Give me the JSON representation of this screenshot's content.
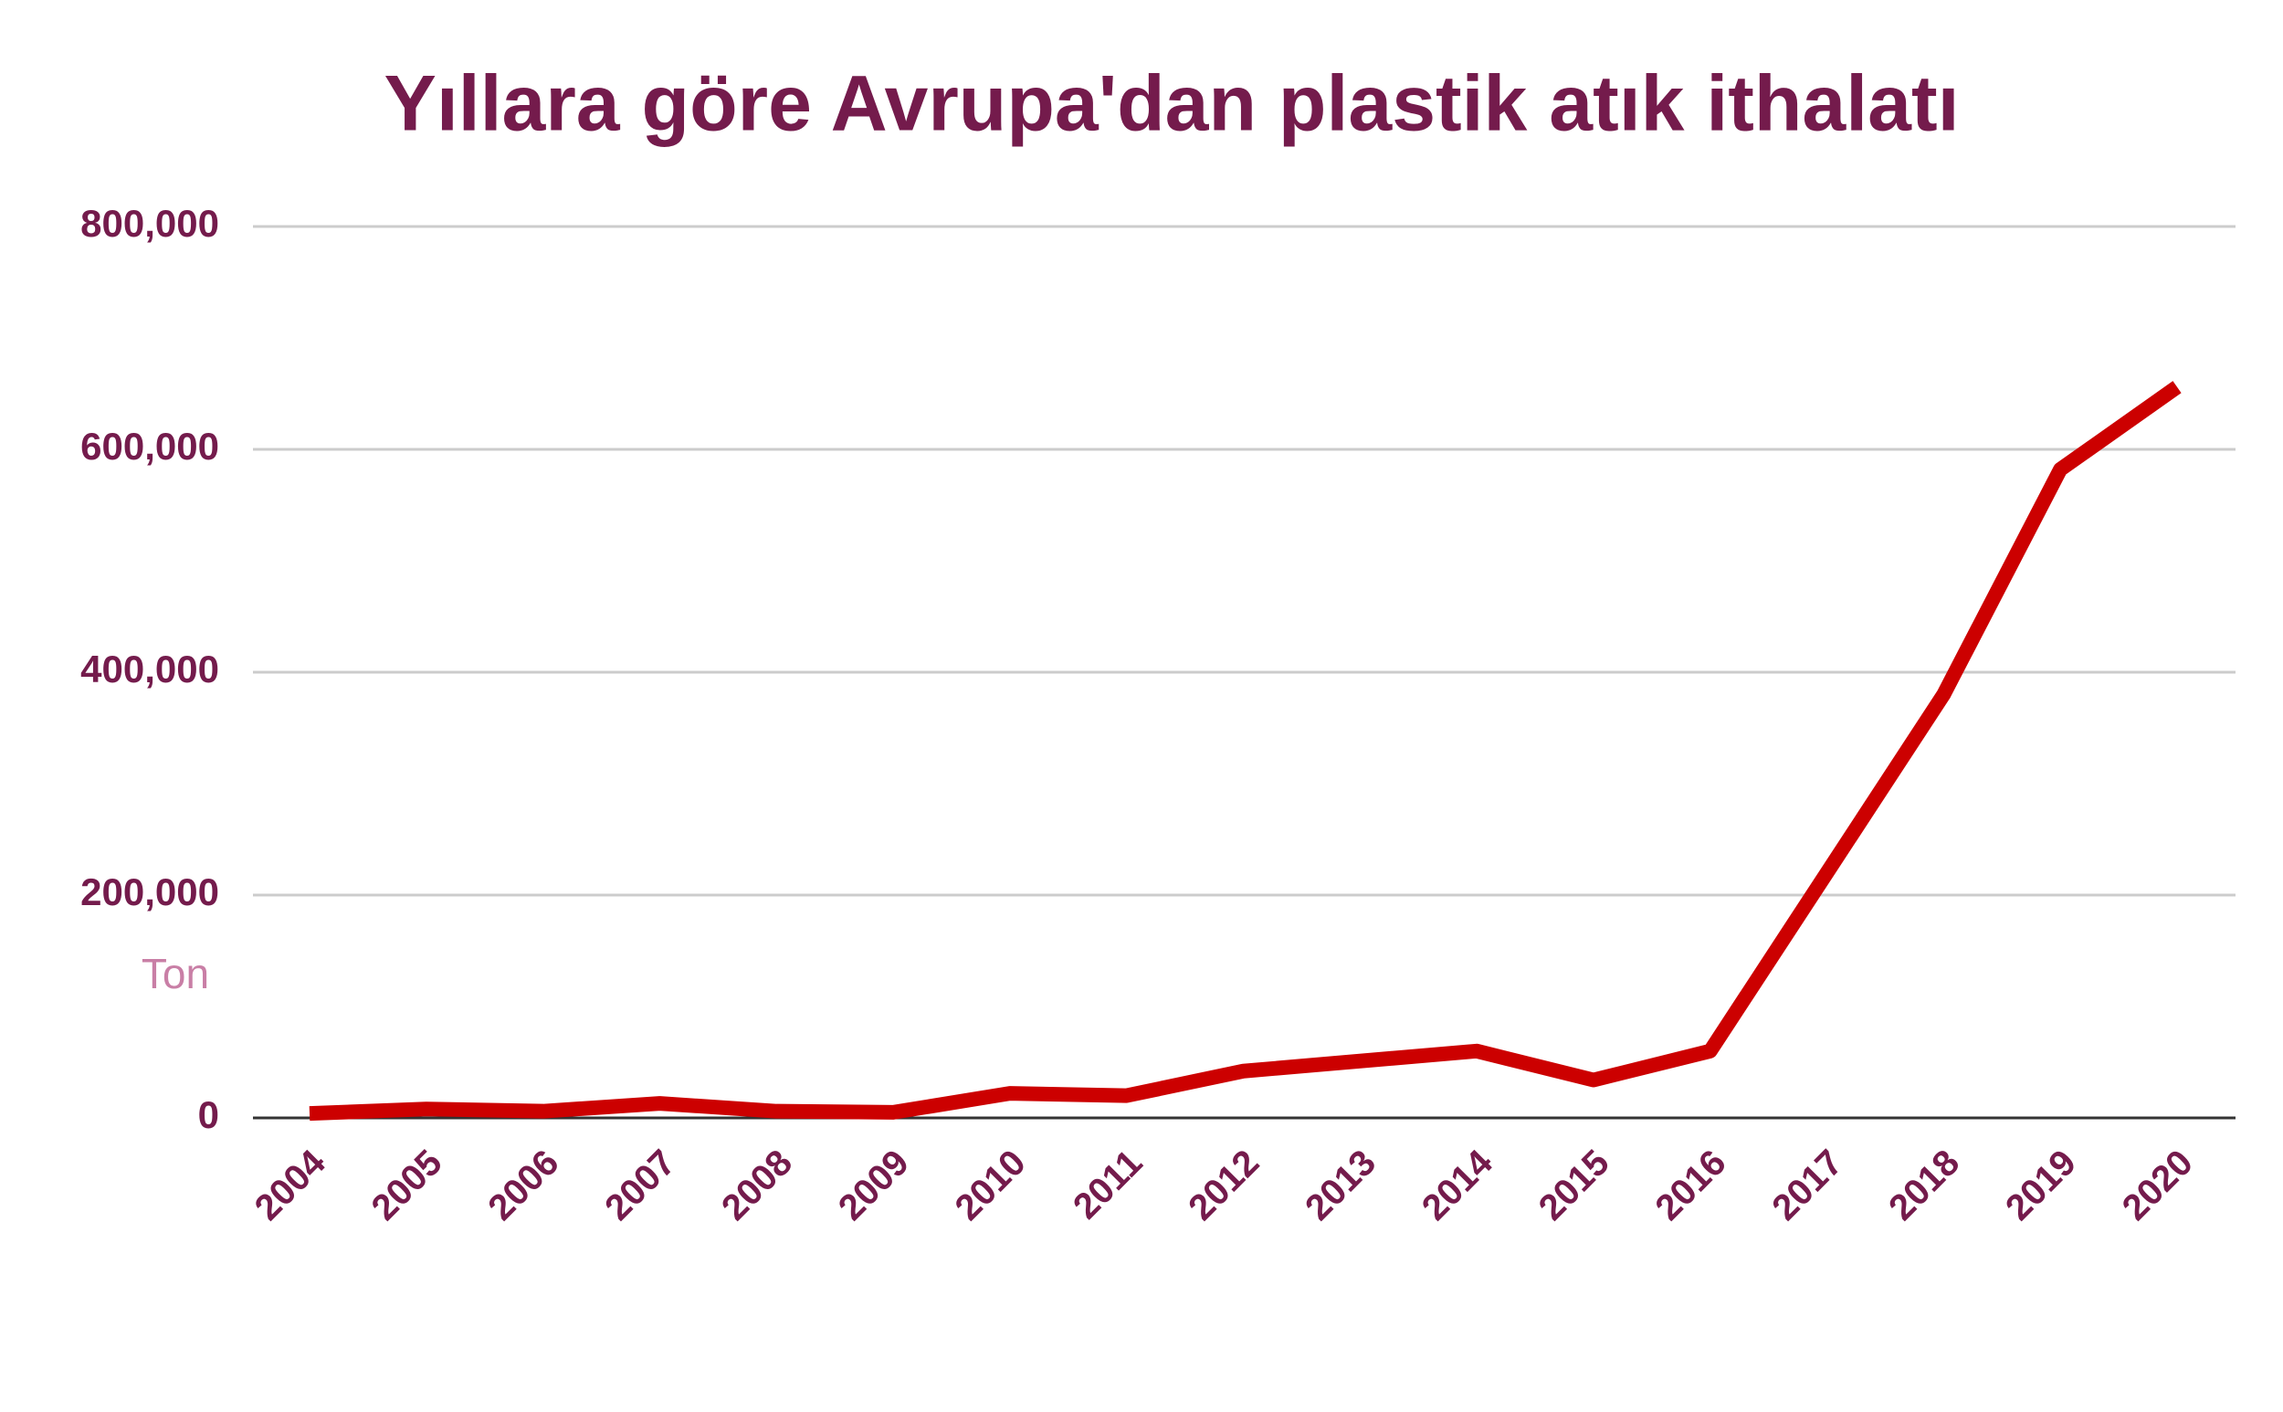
{
  "chart_data": {
    "type": "line",
    "title": "Yıllara göre Avrupa'dan plastik atık ithalatı",
    "ylabel": "Ton",
    "x": [
      "2004",
      "2005",
      "2006",
      "2007",
      "2008",
      "2009",
      "2010",
      "2011",
      "2012",
      "2013",
      "2014",
      "2015",
      "2016",
      "2017",
      "2018",
      "2019",
      "2020"
    ],
    "series": [
      {
        "name": "Ton",
        "color": "#cc0000",
        "values": [
          4000,
          8000,
          6000,
          13000,
          6000,
          5000,
          22000,
          20000,
          42000,
          51000,
          60000,
          34000,
          60000,
          220000,
          380000,
          582000,
          656000
        ]
      }
    ],
    "ylim": [
      0,
      800000
    ],
    "yticks": [
      0,
      {
        "value": 200000,
        "label": "200,000"
      },
      {
        "value": 400000,
        "label": "400,000"
      },
      {
        "value": 600000,
        "label": "600,000"
      },
      {
        "value": 800000,
        "label": "800,000"
      }
    ],
    "grid": true
  }
}
